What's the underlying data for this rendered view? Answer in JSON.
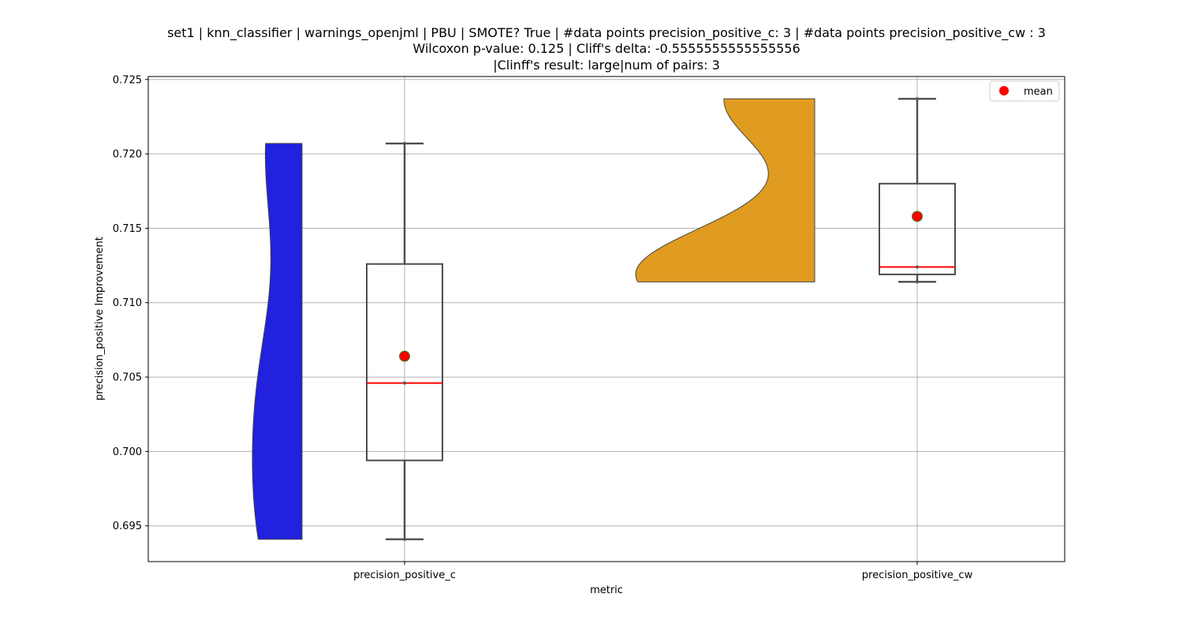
{
  "chart_data": {
    "type": "box",
    "title_lines": [
      "set1 | knn_classifier | warnings_openjml | PBU | SMOTE? True | #data points precision_positive_c: 3 | #data points precision_positive_cw : 3",
      "Wilcoxon p-value: 0.125 | Cliff's delta: -0.5555555555555556",
      "|Clinff's result: large|num of pairs: 3"
    ],
    "xlabel": "metric",
    "ylabel": "precision_positive Improvement",
    "ylim": [
      0.6926,
      0.7252
    ],
    "yticks": [
      0.695,
      0.7,
      0.705,
      0.71,
      0.715,
      0.72,
      0.725
    ],
    "ytick_labels": [
      "0.695",
      "0.700",
      "0.705",
      "0.710",
      "0.715",
      "0.720",
      "0.725"
    ],
    "grid": true,
    "legend": {
      "position": "top-right",
      "entries": [
        {
          "label": "mean",
          "marker": "red-circle"
        }
      ]
    },
    "categories": [
      "precision_positive_c",
      "precision_positive_cw"
    ],
    "series": [
      {
        "category": "precision_positive_c",
        "points": [
          0.6941,
          0.7046,
          0.7207
        ],
        "box": {
          "whisker_low": 0.6941,
          "q1": 0.6994,
          "median": 0.7046,
          "q3": 0.7126,
          "whisker_high": 0.7207
        },
        "mean": 0.7064,
        "violin_color": "#2121de"
      },
      {
        "category": "precision_positive_cw",
        "points": [
          0.7114,
          0.7124,
          0.7237
        ],
        "box": {
          "whisker_low": 0.7114,
          "q1": 0.7119,
          "median": 0.7124,
          "q3": 0.718,
          "whisker_high": 0.7237
        },
        "mean": 0.7158,
        "violin_color": "#e09c20"
      }
    ],
    "colors": {
      "median": "#ff0000",
      "mean_marker": "#ff0000",
      "mean_edge": "#2e8b2e",
      "box_edge": "#4d4d4d",
      "grid": "#b0b0b0"
    }
  }
}
